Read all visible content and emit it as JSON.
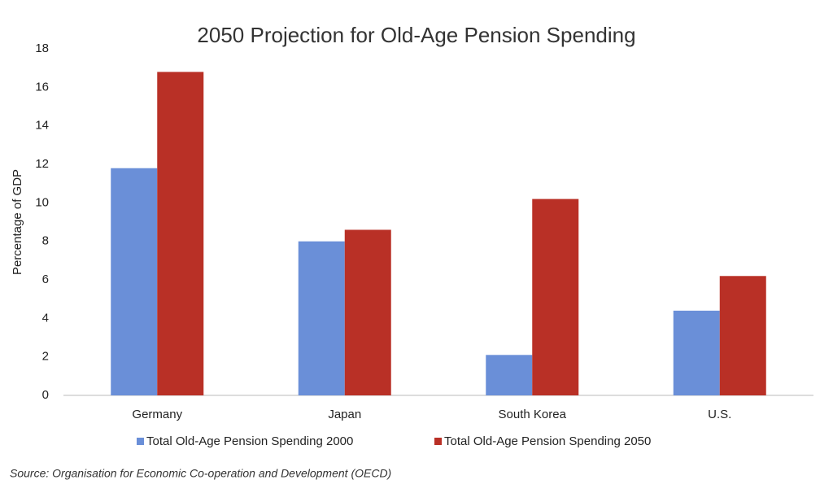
{
  "chart_data": {
    "type": "bar",
    "title": "2050 Projection for Old-Age Pension Spending",
    "ylabel": "Percentage of GDP",
    "categories": [
      "Germany",
      "Japan",
      "South Korea",
      "U.S."
    ],
    "series": [
      {
        "name": "Total Old-Age Pension Spending 2000",
        "color": "#6a8fd8",
        "values": [
          11.8,
          8.0,
          2.1,
          4.4
        ]
      },
      {
        "name": "Total Old-Age Pension Spending 2050",
        "color": "#b93026",
        "values": [
          16.8,
          8.6,
          10.2,
          6.2
        ]
      }
    ],
    "ylim": [
      0,
      18
    ],
    "yticks": [
      0,
      2,
      4,
      6,
      8,
      10,
      12,
      14,
      16,
      18
    ],
    "grid": false,
    "legend": "bottom",
    "source": "Source: Organisation for Economic Co-operation and Development (OECD)"
  }
}
